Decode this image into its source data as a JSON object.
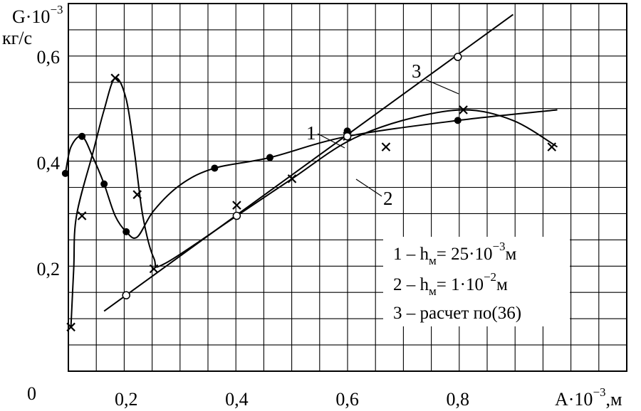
{
  "chart_data": {
    "type": "scatter",
    "ylabel": "G·10",
    "ylabel_exp": "−3",
    "yunit": "кг/с",
    "xlabel": "A·10",
    "xlabel_exp": "−3",
    "xunit": ",м",
    "origin_label": "0",
    "xlim": [
      0.0,
      1.0
    ],
    "ylim": [
      0.0,
      0.7
    ],
    "grid": true,
    "x_ticks": [
      {
        "value": 0.2,
        "label": "0,2"
      },
      {
        "value": 0.4,
        "label": "0,4"
      },
      {
        "value": 0.6,
        "label": "0,6"
      },
      {
        "value": 0.8,
        "label": "0,8"
      }
    ],
    "y_ticks": [
      {
        "value": 0.2,
        "label": "0,2"
      },
      {
        "value": 0.4,
        "label": "0,4"
      },
      {
        "value": 0.6,
        "label": "0,6"
      }
    ],
    "series": [
      {
        "name": "1",
        "marker": "filled-circle",
        "points": [
          [
            0.09,
            0.38
          ],
          [
            0.12,
            0.45
          ],
          [
            0.16,
            0.36
          ],
          [
            0.2,
            0.27
          ],
          [
            0.36,
            0.39
          ],
          [
            0.46,
            0.41
          ],
          [
            0.6,
            0.46
          ],
          [
            0.8,
            0.48
          ]
        ],
        "curve": [
          [
            0.09,
            0.38
          ],
          [
            0.1,
            0.43
          ],
          [
            0.12,
            0.45
          ],
          [
            0.14,
            0.41
          ],
          [
            0.16,
            0.36
          ],
          [
            0.18,
            0.3
          ],
          [
            0.2,
            0.27
          ],
          [
            0.22,
            0.26
          ],
          [
            0.25,
            0.31
          ],
          [
            0.3,
            0.36
          ],
          [
            0.36,
            0.39
          ],
          [
            0.46,
            0.41
          ],
          [
            0.6,
            0.45
          ],
          [
            0.8,
            0.48
          ],
          [
            0.98,
            0.5
          ]
        ]
      },
      {
        "name": "2",
        "marker": "cross",
        "points": [
          [
            0.1,
            0.09
          ],
          [
            0.12,
            0.3
          ],
          [
            0.18,
            0.56
          ],
          [
            0.22,
            0.34
          ],
          [
            0.25,
            0.2
          ],
          [
            0.4,
            0.32
          ],
          [
            0.5,
            0.37
          ],
          [
            0.6,
            0.45
          ],
          [
            0.67,
            0.43
          ],
          [
            0.81,
            0.5
          ],
          [
            0.97,
            0.43
          ]
        ],
        "curve": [
          [
            0.1,
            0.09
          ],
          [
            0.105,
            0.2
          ],
          [
            0.11,
            0.3
          ],
          [
            0.14,
            0.42
          ],
          [
            0.16,
            0.5
          ],
          [
            0.18,
            0.56
          ],
          [
            0.2,
            0.52
          ],
          [
            0.215,
            0.42
          ],
          [
            0.23,
            0.3
          ],
          [
            0.25,
            0.22
          ],
          [
            0.27,
            0.21
          ],
          [
            0.4,
            0.3
          ],
          [
            0.5,
            0.37
          ],
          [
            0.6,
            0.44
          ],
          [
            0.7,
            0.48
          ],
          [
            0.81,
            0.5
          ],
          [
            0.9,
            0.48
          ],
          [
            0.98,
            0.43
          ]
        ]
      },
      {
        "name": "3",
        "marker": "open-circle",
        "points": [
          [
            0.2,
            0.15
          ],
          [
            0.4,
            0.3
          ],
          [
            0.6,
            0.45
          ],
          [
            0.8,
            0.6
          ]
        ],
        "line": [
          [
            0.16,
            0.12
          ],
          [
            0.9,
            0.68
          ]
        ]
      }
    ],
    "curve_labels": [
      "1",
      "2",
      "3"
    ],
    "legend": [
      {
        "lead": "1 – h",
        "sub": "м",
        "mid": "= 25·10",
        "sup": "−3",
        "tail": "м"
      },
      {
        "lead": "2 – h",
        "sub": "м",
        "mid": "=    1·10",
        "sup": "−2",
        "tail": "м"
      },
      {
        "lead": "3 – расчет по(36)",
        "sub": "",
        "mid": "",
        "sup": "",
        "tail": ""
      }
    ],
    "legend_position": "bottom-right"
  }
}
